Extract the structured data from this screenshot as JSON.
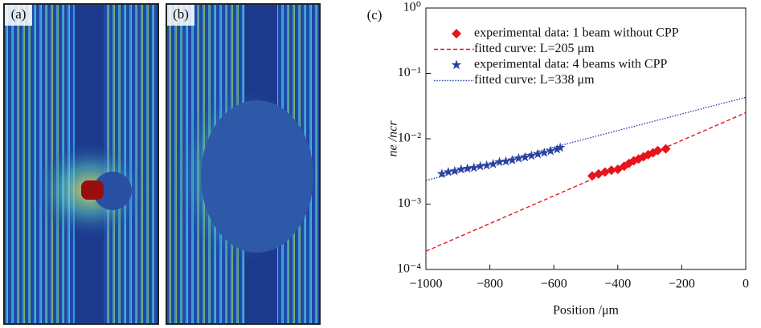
{
  "panels": {
    "a": "(a)",
    "b": "(b)",
    "c": "(c)"
  },
  "chart_data": {
    "type": "line",
    "x_label": "Position /μm",
    "y_label": "ne /ncr",
    "xlim": [
      -1000,
      0
    ],
    "xticks": [
      {
        "value": -1000,
        "label": "−1000"
      },
      {
        "value": -800,
        "label": "−800"
      },
      {
        "value": -600,
        "label": "−600"
      },
      {
        "value": -400,
        "label": "−400"
      },
      {
        "value": -200,
        "label": "−200"
      },
      0
    ],
    "ylim": [
      0.0001,
      1
    ],
    "yticks": [
      {
        "value": 0.0001,
        "label": "10⁻⁴"
      },
      {
        "value": 0.001,
        "label": "10⁻³"
      },
      {
        "value": 0.01,
        "label": "10⁻²"
      },
      {
        "value": 0.1,
        "label": "10⁻¹"
      },
      {
        "value": 1,
        "label": "10⁰"
      }
    ],
    "log_y": true,
    "legend": "upper left",
    "series": [
      {
        "name": "experimental data: 1 beam without CPP",
        "color": "#e8141c",
        "marker": "diamond",
        "x": [
          -480,
          -460,
          -440,
          -420,
          -400,
          -380,
          -365,
          -350,
          -335,
          -320,
          -305,
          -290,
          -275,
          -250
        ],
        "values": [
          0.0027,
          0.0029,
          0.0031,
          0.0033,
          0.0034,
          0.0038,
          0.0042,
          0.0046,
          0.0049,
          0.0053,
          0.0057,
          0.0061,
          0.0066,
          0.007
        ]
      },
      {
        "name": "fitted curve: L=205 μm",
        "color": "#e8141c",
        "line_style": "dashed",
        "x": [
          -1000,
          0
        ],
        "values": [
          0.00019,
          0.025
        ]
      },
      {
        "name": "experimental data: 4 beams with CPP",
        "color": "#2a43a0",
        "marker": "star",
        "x": [
          -950,
          -930,
          -910,
          -890,
          -870,
          -850,
          -830,
          -810,
          -790,
          -770,
          -750,
          -730,
          -710,
          -690,
          -670,
          -650,
          -630,
          -610,
          -590,
          -580
        ],
        "values": [
          0.0029,
          0.0031,
          0.0032,
          0.0034,
          0.0035,
          0.0036,
          0.0038,
          0.0039,
          0.0041,
          0.0044,
          0.0045,
          0.0047,
          0.005,
          0.0052,
          0.0055,
          0.0058,
          0.0061,
          0.0065,
          0.0069,
          0.0073
        ]
      },
      {
        "name": "fitted curve: L=338 μm",
        "color": "#2a43a0",
        "line_style": "dotted",
        "x": [
          -1000,
          0
        ],
        "values": [
          0.0023,
          0.043
        ]
      }
    ]
  }
}
